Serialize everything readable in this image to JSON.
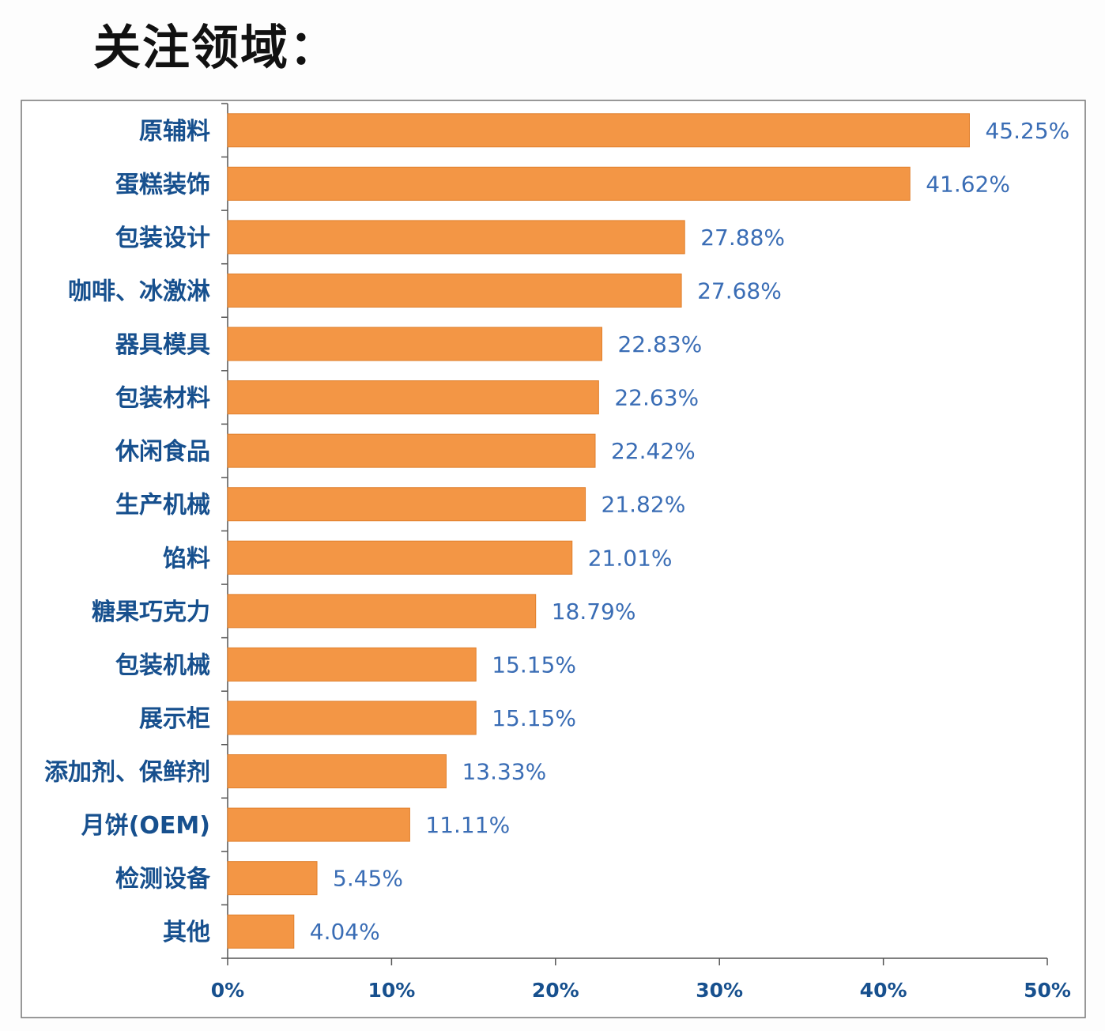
{
  "title": "关注领域：",
  "chart_data": {
    "type": "bar",
    "orientation": "horizontal",
    "title": "",
    "xlabel": "",
    "ylabel": "",
    "categories": [
      "原辅料",
      "蛋糕装饰",
      "包装设计",
      "咖啡、冰激淋",
      "器具模具",
      "包装材料",
      "休闲食品",
      "生产机械",
      "馅料",
      "糖果巧克力",
      "包装机械",
      "展示柜",
      "添加剂、保鲜剂",
      "月饼(OEM)",
      "检测设备",
      "其他"
    ],
    "values": [
      45.25,
      41.62,
      27.88,
      27.68,
      22.83,
      22.63,
      22.42,
      21.82,
      21.01,
      18.79,
      15.15,
      15.15,
      13.33,
      11.11,
      5.45,
      4.04
    ],
    "value_labels": [
      "45.25%",
      "41.62%",
      "27.88%",
      "27.68%",
      "22.83%",
      "22.63%",
      "22.42%",
      "21.82%",
      "21.01%",
      "18.79%",
      "15.15%",
      "15.15%",
      "13.33%",
      "11.11%",
      "5.45%",
      "4.04%"
    ],
    "xlim": [
      0,
      50
    ],
    "xticks": [
      "0%",
      "10%",
      "20%",
      "30%",
      "40%",
      "50%"
    ],
    "grid": false,
    "colors": {
      "bar": "#f39645",
      "category_label": "#17508e",
      "value_label": "#3a6db5",
      "axis": "#555555"
    }
  }
}
